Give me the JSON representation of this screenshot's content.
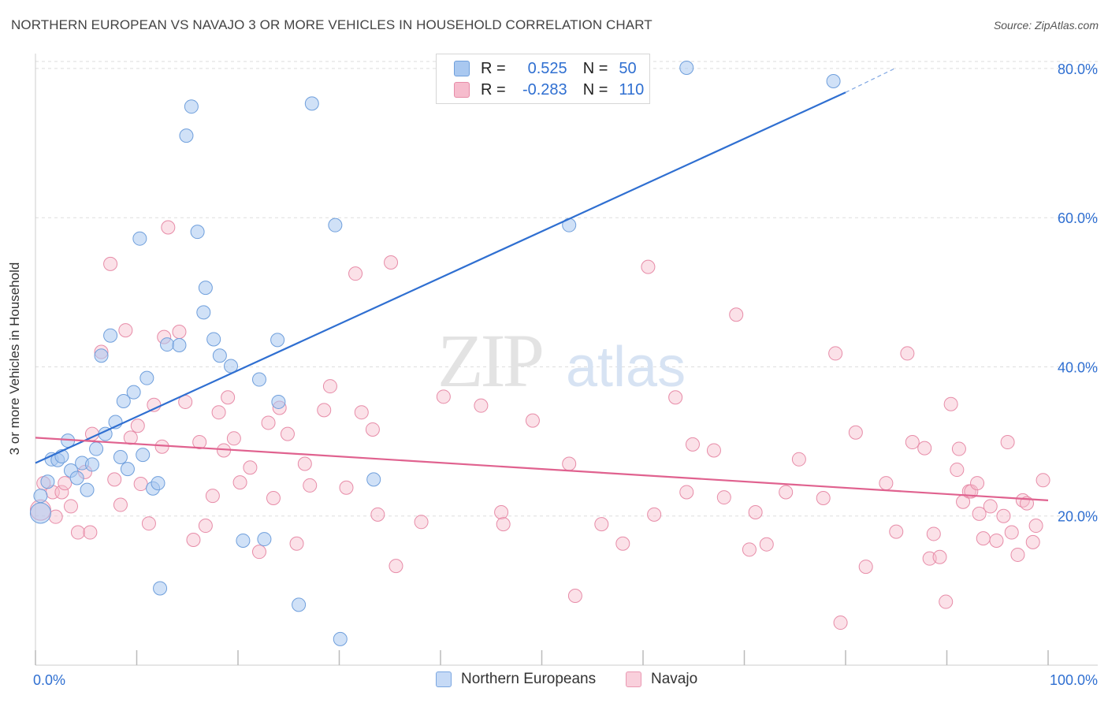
{
  "header": {
    "title": "NORTHERN EUROPEAN VS NAVAJO 3 OR MORE VEHICLES IN HOUSEHOLD CORRELATION CHART",
    "source": "Source: ZipAtlas.com"
  },
  "watermark": {
    "zip": "ZIP",
    "atlas": "atlas"
  },
  "legend": {
    "rows": [
      {
        "r_label": "R =",
        "r_value": "0.525",
        "n_label": "N =",
        "n_value": "50",
        "color": "#a9c8f0",
        "border": "#6f9fdc"
      },
      {
        "r_label": "R =",
        "r_value": "-0.283",
        "n_label": "N =",
        "n_value": "110",
        "color": "#f6bccd",
        "border": "#e78ca8"
      }
    ]
  },
  "bottom_legend": {
    "items": [
      {
        "label": "Northern Europeans",
        "color": "#c6daf6",
        "border": "#7aa6e0"
      },
      {
        "label": "Navajo",
        "color": "#f9d0dc",
        "border": "#ea98b2"
      }
    ]
  },
  "chart_data": {
    "type": "scatter",
    "title": "NORTHERN EUROPEAN VS NAVAJO 3 OR MORE VEHICLES IN HOUSEHOLD CORRELATION CHART",
    "xlabel": "",
    "ylabel": "3 or more Vehicles in Household",
    "xlim": [
      0,
      100
    ],
    "ylim": [
      0,
      82
    ],
    "x_tick_labels": [
      "0.0%",
      "100.0%"
    ],
    "y_ticks": [
      20,
      40,
      60,
      80
    ],
    "y_tick_labels": [
      "20.0%",
      "40.0%",
      "60.0%",
      "80.0%"
    ],
    "grid": true,
    "colors": {
      "blue": "#2f6fd1",
      "pink": "#e0628f",
      "blue_fill": "#a9c8f0",
      "pink_fill": "#f6bccd"
    },
    "series": [
      {
        "name": "Northern Europeans",
        "color": "#2f6fd1",
        "points": [
          [
            0.5,
            20.4
          ],
          [
            0.5,
            22.7
          ],
          [
            1.2,
            24.6
          ],
          [
            1.6,
            27.6
          ],
          [
            2.2,
            27.5
          ],
          [
            2.6,
            28.0
          ],
          [
            3.2,
            30.1
          ],
          [
            3.5,
            26.1
          ],
          [
            4.1,
            25.1
          ],
          [
            4.6,
            27.1
          ],
          [
            5.1,
            23.5
          ],
          [
            5.6,
            26.9
          ],
          [
            6.0,
            29.0
          ],
          [
            6.5,
            41.5
          ],
          [
            6.9,
            31.0
          ],
          [
            7.4,
            44.2
          ],
          [
            7.9,
            32.6
          ],
          [
            8.4,
            27.9
          ],
          [
            8.7,
            35.4
          ],
          [
            9.1,
            26.3
          ],
          [
            9.7,
            36.6
          ],
          [
            10.3,
            57.2
          ],
          [
            10.6,
            28.2
          ],
          [
            11.0,
            38.5
          ],
          [
            11.6,
            23.7
          ],
          [
            12.1,
            24.4
          ],
          [
            12.3,
            10.3
          ],
          [
            13.0,
            43.0
          ],
          [
            14.2,
            42.9
          ],
          [
            14.9,
            71.0
          ],
          [
            15.4,
            74.9
          ],
          [
            16.0,
            58.1
          ],
          [
            16.6,
            47.3
          ],
          [
            16.8,
            50.6
          ],
          [
            17.6,
            43.7
          ],
          [
            18.2,
            41.5
          ],
          [
            19.3,
            40.1
          ],
          [
            20.5,
            16.7
          ],
          [
            22.1,
            38.3
          ],
          [
            22.6,
            16.9
          ],
          [
            23.9,
            43.6
          ],
          [
            24.0,
            35.3
          ],
          [
            26.0,
            8.1
          ],
          [
            27.3,
            75.3
          ],
          [
            29.6,
            59.0
          ],
          [
            30.1,
            3.5
          ],
          [
            33.4,
            24.9
          ],
          [
            52.7,
            59.0
          ],
          [
            64.3,
            80.1
          ],
          [
            78.8,
            78.3
          ]
        ]
      },
      {
        "name": "Navajo",
        "color": "#e0628f",
        "points": [
          [
            0.5,
            20.8
          ],
          [
            0.8,
            24.4
          ],
          [
            1.7,
            23.2
          ],
          [
            2.0,
            19.9
          ],
          [
            2.6,
            23.2
          ],
          [
            2.9,
            24.4
          ],
          [
            3.5,
            21.3
          ],
          [
            4.2,
            17.8
          ],
          [
            4.9,
            25.9
          ],
          [
            5.4,
            17.8
          ],
          [
            5.6,
            31.0
          ],
          [
            6.5,
            42.0
          ],
          [
            7.4,
            53.8
          ],
          [
            7.8,
            24.9
          ],
          [
            8.4,
            21.5
          ],
          [
            8.9,
            44.9
          ],
          [
            9.4,
            30.5
          ],
          [
            10.1,
            32.1
          ],
          [
            10.4,
            24.3
          ],
          [
            11.2,
            19.0
          ],
          [
            11.7,
            34.9
          ],
          [
            12.5,
            29.3
          ],
          [
            12.7,
            44.0
          ],
          [
            13.1,
            58.7
          ],
          [
            14.2,
            44.7
          ],
          [
            14.8,
            35.3
          ],
          [
            15.6,
            16.8
          ],
          [
            16.2,
            29.9
          ],
          [
            16.8,
            18.7
          ],
          [
            17.5,
            22.7
          ],
          [
            18.1,
            33.9
          ],
          [
            18.6,
            28.8
          ],
          [
            19.0,
            35.9
          ],
          [
            19.6,
            30.4
          ],
          [
            20.2,
            24.5
          ],
          [
            21.2,
            26.5
          ],
          [
            22.1,
            15.2
          ],
          [
            23.0,
            32.5
          ],
          [
            23.5,
            22.4
          ],
          [
            24.1,
            34.5
          ],
          [
            24.9,
            31.0
          ],
          [
            25.8,
            16.3
          ],
          [
            26.6,
            27.0
          ],
          [
            27.1,
            24.1
          ],
          [
            28.5,
            34.2
          ],
          [
            29.1,
            37.4
          ],
          [
            30.7,
            23.8
          ],
          [
            31.6,
            52.5
          ],
          [
            32.2,
            33.9
          ],
          [
            33.3,
            31.6
          ],
          [
            33.8,
            20.2
          ],
          [
            35.1,
            54.0
          ],
          [
            35.6,
            13.3
          ],
          [
            38.1,
            19.2
          ],
          [
            40.3,
            36.0
          ],
          [
            44.0,
            34.8
          ],
          [
            46.0,
            20.5
          ],
          [
            46.2,
            18.9
          ],
          [
            49.1,
            32.8
          ],
          [
            52.7,
            27.0
          ],
          [
            53.3,
            9.3
          ],
          [
            55.9,
            18.9
          ],
          [
            58.0,
            16.3
          ],
          [
            60.5,
            53.4
          ],
          [
            61.1,
            20.2
          ],
          [
            63.2,
            35.9
          ],
          [
            64.3,
            23.2
          ],
          [
            64.9,
            29.6
          ],
          [
            67.0,
            28.8
          ],
          [
            68.0,
            22.5
          ],
          [
            69.2,
            47.0
          ],
          [
            70.5,
            15.5
          ],
          [
            71.1,
            20.5
          ],
          [
            72.2,
            16.2
          ],
          [
            74.1,
            23.2
          ],
          [
            75.4,
            27.6
          ],
          [
            77.8,
            22.4
          ],
          [
            79.0,
            41.8
          ],
          [
            79.5,
            5.7
          ],
          [
            81.0,
            31.2
          ],
          [
            82.0,
            13.2
          ],
          [
            84.0,
            24.4
          ],
          [
            85.0,
            17.9
          ],
          [
            86.1,
            41.8
          ],
          [
            86.6,
            29.9
          ],
          [
            87.8,
            29.1
          ],
          [
            88.3,
            14.3
          ],
          [
            88.7,
            17.6
          ],
          [
            89.3,
            14.5
          ],
          [
            89.9,
            8.5
          ],
          [
            90.4,
            35.0
          ],
          [
            91.0,
            26.2
          ],
          [
            91.2,
            29.0
          ],
          [
            91.6,
            21.9
          ],
          [
            92.2,
            23.3
          ],
          [
            92.4,
            23.3
          ],
          [
            93.0,
            24.4
          ],
          [
            93.2,
            20.3
          ],
          [
            93.6,
            17.0
          ],
          [
            94.3,
            21.3
          ],
          [
            94.9,
            16.7
          ],
          [
            95.6,
            20.0
          ],
          [
            96.0,
            29.9
          ],
          [
            96.4,
            17.8
          ],
          [
            97.0,
            14.8
          ],
          [
            97.5,
            22.1
          ],
          [
            97.9,
            21.7
          ],
          [
            98.5,
            16.5
          ],
          [
            98.8,
            18.7
          ],
          [
            99.5,
            24.8
          ]
        ]
      }
    ],
    "trend_lines": [
      {
        "series": "Northern Europeans",
        "x": [
          0,
          80
        ],
        "y": [
          27.1,
          76.8
        ],
        "dashed_to": [
          85,
          80.1
        ]
      },
      {
        "series": "Navajo",
        "x": [
          0,
          100
        ],
        "y": [
          30.5,
          22.1
        ]
      }
    ]
  }
}
